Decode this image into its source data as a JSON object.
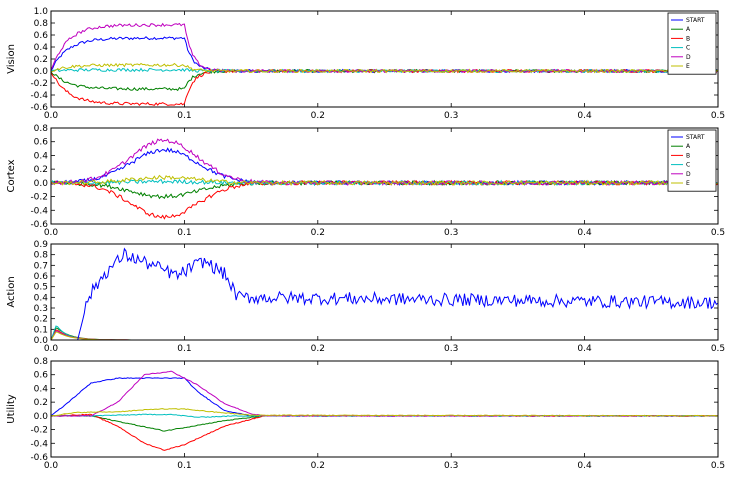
{
  "chart_data": [
    {
      "type": "line",
      "ylabel": "Vision",
      "xlim": [
        0,
        0.5
      ],
      "ylim": [
        -0.6,
        1.0
      ],
      "yticks": [
        "1.0",
        "0.8",
        "0.6",
        "0.4",
        "0.2",
        "0.0",
        "-0.2",
        "-0.4",
        "-0.6"
      ],
      "xticks": [
        "0.0",
        "0.1",
        "0.2",
        "0.3",
        "0.4",
        "0.5"
      ],
      "legend": "top-right",
      "series": [
        {
          "name": "START",
          "color": "#0000ff",
          "plateau": 0.55,
          "rise": 0.012,
          "start": 0.0,
          "stop": 0.1,
          "fall": 0.006,
          "noise": 0.025
        },
        {
          "name": "A",
          "color": "#008000",
          "plateau": -0.3,
          "rise": 0.012,
          "start": 0.0,
          "stop": 0.1,
          "fall": 0.006,
          "noise": 0.025
        },
        {
          "name": "B",
          "color": "#ff0000",
          "plateau": -0.55,
          "rise": 0.012,
          "start": 0.0,
          "stop": 0.1,
          "fall": 0.006,
          "noise": 0.025
        },
        {
          "name": "C",
          "color": "#00bfbf",
          "plateau": 0.02,
          "rise": 0.012,
          "start": 0.0,
          "stop": 0.1,
          "fall": 0.006,
          "noise": 0.025
        },
        {
          "name": "D",
          "color": "#bf00bf",
          "plateau": 0.77,
          "rise": 0.012,
          "start": 0.0,
          "stop": 0.1,
          "fall": 0.006,
          "noise": 0.025
        },
        {
          "name": "E",
          "color": "#bfbf00",
          "plateau": 0.1,
          "rise": 0.012,
          "start": 0.0,
          "stop": 0.1,
          "fall": 0.006,
          "noise": 0.025
        }
      ]
    },
    {
      "type": "line",
      "ylabel": "Cortex",
      "xlim": [
        0,
        0.5
      ],
      "ylim": [
        -0.6,
        0.8
      ],
      "yticks": [
        "0.8",
        "0.6",
        "0.4",
        "0.2",
        "0.0",
        "-0.2",
        "-0.4",
        "-0.6"
      ],
      "xticks": [
        "0.0",
        "0.1",
        "0.2",
        "0.3",
        "0.4",
        "0.5"
      ],
      "legend": "top-right",
      "series": [
        {
          "name": "START",
          "color": "#0000ff",
          "peak": 0.48,
          "center": 0.085,
          "width": 0.025,
          "noise": 0.03
        },
        {
          "name": "A",
          "color": "#008000",
          "peak": -0.2,
          "center": 0.085,
          "width": 0.025,
          "noise": 0.03
        },
        {
          "name": "B",
          "color": "#ff0000",
          "peak": -0.5,
          "center": 0.085,
          "width": 0.025,
          "noise": 0.03
        },
        {
          "name": "C",
          "color": "#00bfbf",
          "peak": 0.02,
          "center": 0.085,
          "width": 0.025,
          "noise": 0.03
        },
        {
          "name": "D",
          "color": "#bf00bf",
          "peak": 0.62,
          "center": 0.085,
          "width": 0.025,
          "noise": 0.03
        },
        {
          "name": "E",
          "color": "#bfbf00",
          "peak": 0.08,
          "center": 0.085,
          "width": 0.025,
          "noise": 0.03
        }
      ]
    },
    {
      "type": "line",
      "ylabel": "Action",
      "xlim": [
        0,
        0.5
      ],
      "ylim": [
        0.0,
        0.9
      ],
      "yticks": [
        "0.9",
        "0.8",
        "0.7",
        "0.6",
        "0.5",
        "0.4",
        "0.3",
        "0.2",
        "0.1",
        "0.0"
      ],
      "xticks": [
        "0.0",
        "0.1",
        "0.2",
        "0.3",
        "0.4",
        "0.5"
      ],
      "main": {
        "color": "#0000ff",
        "points": [
          [
            0.0,
            0.0
          ],
          [
            0.02,
            0.0
          ],
          [
            0.028,
            0.4
          ],
          [
            0.04,
            0.62
          ],
          [
            0.055,
            0.8
          ],
          [
            0.07,
            0.73
          ],
          [
            0.08,
            0.68
          ],
          [
            0.095,
            0.6
          ],
          [
            0.105,
            0.68
          ],
          [
            0.115,
            0.74
          ],
          [
            0.13,
            0.62
          ],
          [
            0.14,
            0.4
          ],
          [
            0.5,
            0.35
          ]
        ],
        "noise": 0.06
      },
      "transients": [
        {
          "color": "#008000",
          "peak": 0.12,
          "decay": 0.01
        },
        {
          "color": "#ff0000",
          "peak": 0.1,
          "decay": 0.01
        },
        {
          "color": "#00bfbf",
          "peak": 0.14,
          "decay": 0.008
        },
        {
          "color": "#bf00bf",
          "peak": 0.09,
          "decay": 0.01
        },
        {
          "color": "#bfbf00",
          "peak": 0.08,
          "decay": 0.01
        }
      ]
    },
    {
      "type": "line",
      "ylabel": "Utility",
      "xlim": [
        0,
        0.5
      ],
      "ylim": [
        -0.6,
        0.8
      ],
      "yticks": [
        "0.8",
        "0.6",
        "0.4",
        "0.2",
        "0.0",
        "-0.2",
        "-0.4",
        "-0.6"
      ],
      "xticks": [
        "0.0",
        "0.1",
        "0.2",
        "0.3",
        "0.4",
        "0.5"
      ],
      "series": [
        {
          "name": "START",
          "color": "#0000ff",
          "points": [
            [
              0.0,
              0.0
            ],
            [
              0.01,
              0.15
            ],
            [
              0.03,
              0.48
            ],
            [
              0.05,
              0.55
            ],
            [
              0.1,
              0.55
            ],
            [
              0.11,
              0.35
            ],
            [
              0.13,
              0.08
            ],
            [
              0.15,
              0.0
            ],
            [
              0.5,
              0.0
            ]
          ]
        },
        {
          "name": "A",
          "color": "#008000",
          "points": [
            [
              0.0,
              0.0
            ],
            [
              0.03,
              0.0
            ],
            [
              0.06,
              -0.12
            ],
            [
              0.085,
              -0.22
            ],
            [
              0.1,
              -0.17
            ],
            [
              0.13,
              -0.07
            ],
            [
              0.16,
              0.0
            ],
            [
              0.5,
              0.0
            ]
          ]
        },
        {
          "name": "B",
          "color": "#ff0000",
          "points": [
            [
              0.0,
              0.0
            ],
            [
              0.03,
              0.02
            ],
            [
              0.05,
              -0.15
            ],
            [
              0.07,
              -0.4
            ],
            [
              0.085,
              -0.5
            ],
            [
              0.1,
              -0.42
            ],
            [
              0.13,
              -0.15
            ],
            [
              0.16,
              0.0
            ],
            [
              0.5,
              0.0
            ]
          ]
        },
        {
          "name": "C",
          "color": "#00bfbf",
          "points": [
            [
              0.0,
              0.0
            ],
            [
              0.03,
              0.0
            ],
            [
              0.07,
              0.02
            ],
            [
              0.09,
              0.02
            ],
            [
              0.11,
              -0.02
            ],
            [
              0.14,
              0.0
            ],
            [
              0.5,
              0.0
            ]
          ]
        },
        {
          "name": "D",
          "color": "#bf00bf",
          "points": [
            [
              0.0,
              0.0
            ],
            [
              0.03,
              0.0
            ],
            [
              0.05,
              0.2
            ],
            [
              0.07,
              0.6
            ],
            [
              0.09,
              0.65
            ],
            [
              0.11,
              0.45
            ],
            [
              0.13,
              0.18
            ],
            [
              0.15,
              0.03
            ],
            [
              0.16,
              0.0
            ],
            [
              0.5,
              0.0
            ]
          ]
        },
        {
          "name": "E",
          "color": "#bfbf00",
          "points": [
            [
              0.0,
              0.0
            ],
            [
              0.02,
              0.05
            ],
            [
              0.05,
              0.06
            ],
            [
              0.08,
              0.1
            ],
            [
              0.1,
              0.1
            ],
            [
              0.12,
              0.06
            ],
            [
              0.15,
              0.01
            ],
            [
              0.5,
              0.0
            ]
          ]
        }
      ]
    }
  ]
}
